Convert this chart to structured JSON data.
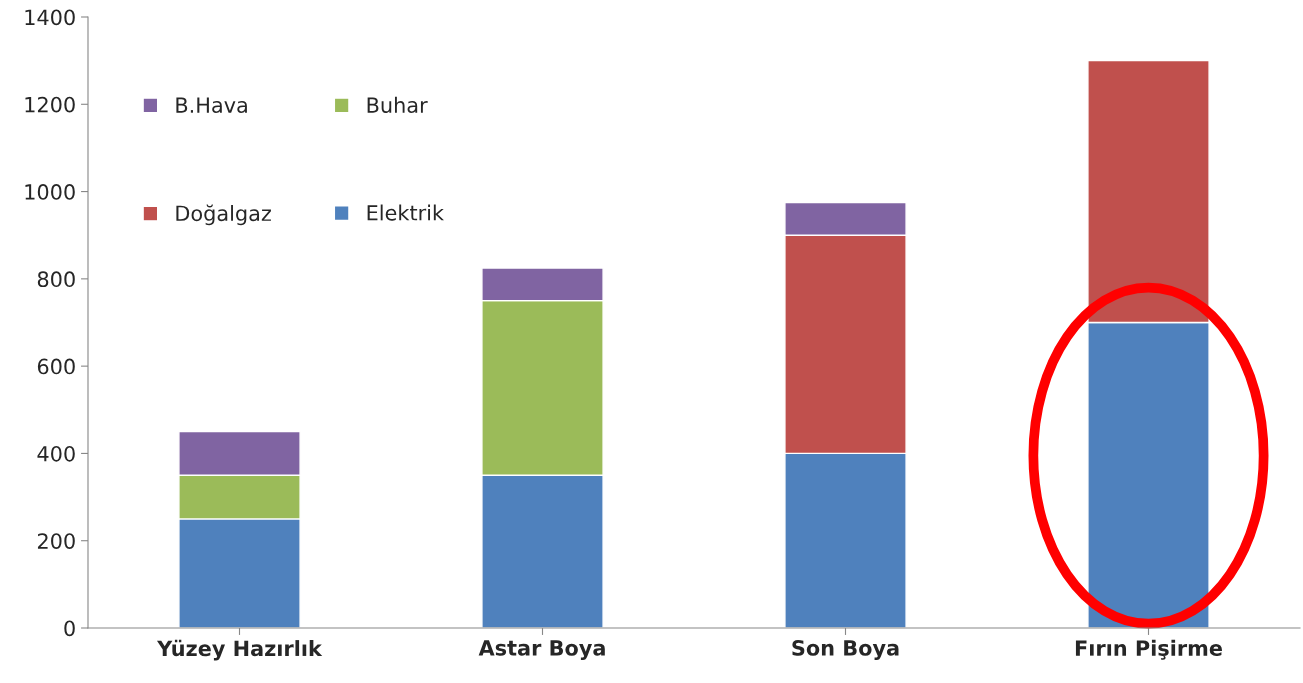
{
  "chart_data": {
    "type": "bar",
    "stacked": true,
    "categories": [
      "Yüzey Hazırlık",
      "Astar Boya",
      "Son Boya",
      "Fırın Pişirme"
    ],
    "series": [
      {
        "name": "Elektrik",
        "color": "#4f81bd",
        "values": [
          250,
          350,
          400,
          700
        ]
      },
      {
        "name": "Doğalgaz",
        "color": "#c0504d",
        "values": [
          null,
          null,
          500,
          600
        ]
      },
      {
        "name": "Buhar",
        "color": "#9bbb59",
        "values": [
          100,
          400,
          null,
          null
        ]
      },
      {
        "name": "B.Hava",
        "color": "#8064a2",
        "values": [
          100,
          75,
          75,
          null
        ]
      }
    ],
    "ylim": [
      0,
      1400
    ],
    "yticks": [
      0,
      200,
      400,
      600,
      800,
      1000,
      1200,
      1400
    ],
    "grid": false,
    "legend": "top left"
  }
}
